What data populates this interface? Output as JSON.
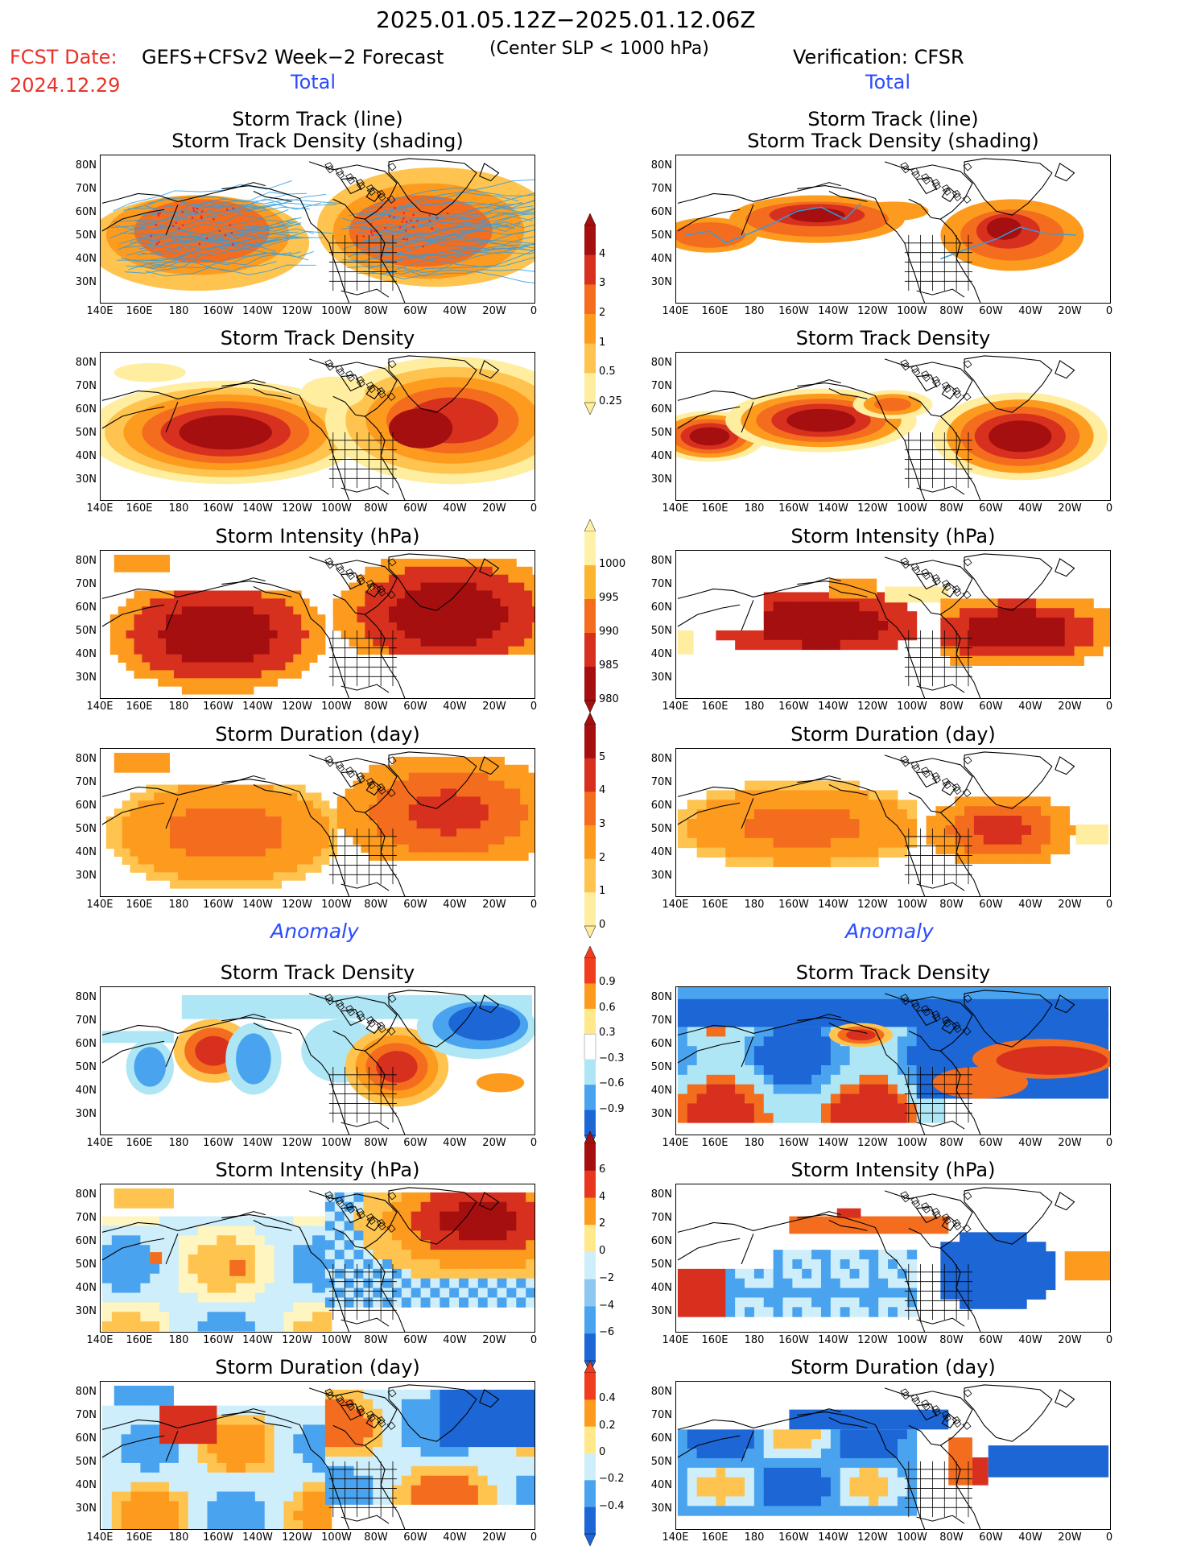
{
  "header": {
    "date_range": "2025.01.05.12Z−2025.01.12.06Z",
    "fcst_date_label": "FCST Date:",
    "fcst_date": "2024.12.29",
    "forecast_title": "GEFS+CFSv2 Week−2 Forecast",
    "criterion": "(Center SLP < 1000 hPa)",
    "verification": "Verification: CFSR"
  },
  "sections": {
    "total": "Total",
    "anomaly": "Anomaly"
  },
  "panel_titles": {
    "track_line": "Storm Track (line)",
    "track_density_shading": "Storm Track Density (shading)",
    "track_density": "Storm Track Density",
    "intensity": "Storm Intensity (hPa)",
    "duration": "Storm Duration (day)"
  },
  "axes": {
    "lat_labels": [
      "80N",
      "70N",
      "60N",
      "50N",
      "40N",
      "30N"
    ],
    "lon_labels": [
      "140E",
      "160E",
      "180",
      "160W",
      "140W",
      "120W",
      "100W",
      "80W",
      "60W",
      "40W",
      "20W",
      "0"
    ]
  },
  "colorbars": {
    "density_total": {
      "labels": [
        "4",
        "3",
        "2",
        "1",
        "0.5",
        "0.25"
      ],
      "colors": [
        "#a50f0f",
        "#d7301f",
        "#f46d1f",
        "#fd9b1f",
        "#fec44f",
        "#ffeea0"
      ]
    },
    "intensity_total": {
      "labels": [
        "1000",
        "995",
        "990",
        "985",
        "980"
      ],
      "colors": [
        "#fff1a8",
        "#fdb42f",
        "#f46d1f",
        "#d7301f",
        "#a50f0f"
      ]
    },
    "duration_total": {
      "labels": [
        "5",
        "4",
        "3",
        "2",
        "1",
        "0"
      ],
      "colors": [
        "#a50f0f",
        "#d7301f",
        "#f46d1f",
        "#fd9b1f",
        "#fec44f",
        "#ffeea0"
      ]
    },
    "density_anom": {
      "labels": [
        "0.9",
        "0.6",
        "0.3",
        "−0.3",
        "−0.6",
        "−0.9"
      ],
      "colors": [
        "#f03c1f",
        "#fd9b1f",
        "#ffe98a",
        "#ffffff",
        "#aee6f5",
        "#4aa3ee",
        "#1c66d6"
      ]
    },
    "intensity_anom": {
      "labels": [
        "6",
        "4",
        "2",
        "0",
        "−2",
        "−4",
        "−6"
      ],
      "colors": [
        "#a50f0f",
        "#e8371f",
        "#fd9b1f",
        "#ffe98a",
        "#cdeefa",
        "#8cc8f2",
        "#4aa3ee",
        "#1c66d6"
      ]
    },
    "duration_anom": {
      "labels": [
        "0.4",
        "0.2",
        "0",
        "−0.2",
        "−0.4"
      ],
      "colors": [
        "#f03c1f",
        "#fd9b1f",
        "#ffe98a",
        "#cdeefa",
        "#4aa3ee",
        "#1c66d6"
      ]
    }
  }
}
